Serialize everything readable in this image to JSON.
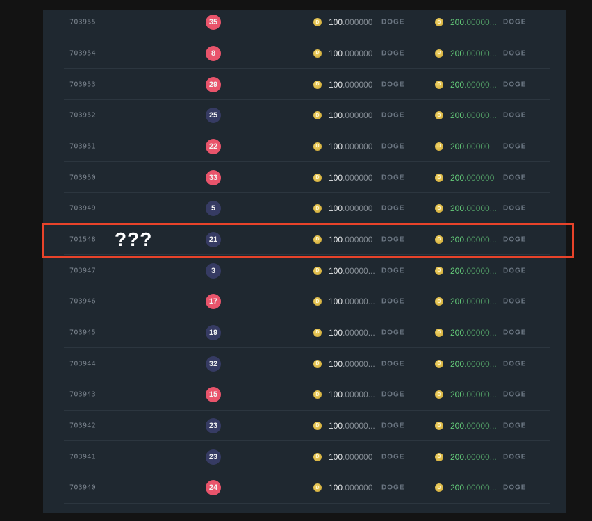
{
  "colors": {
    "badge_red": "#e9546b",
    "badge_navy": "#363b63",
    "highlight": "#e8432a",
    "coin": "#d9b33f"
  },
  "coin_icon": "doge-coin-icon",
  "coin_letter": "D",
  "annotation": "???",
  "rows": [
    {
      "id": "703955",
      "num": "35",
      "color": "red",
      "bet_int": "100",
      "bet_dec": ".000000",
      "bet_cur": "DOGE",
      "pay_int": "200",
      "pay_dec": ".00000...",
      "pay_cur": "DOGE"
    },
    {
      "id": "703954",
      "num": "8",
      "color": "red",
      "bet_int": "100",
      "bet_dec": ".000000",
      "bet_cur": "DOGE",
      "pay_int": "200",
      "pay_dec": ".00000...",
      "pay_cur": "DOGE"
    },
    {
      "id": "703953",
      "num": "29",
      "color": "red",
      "bet_int": "100",
      "bet_dec": ".000000",
      "bet_cur": "DOGE",
      "pay_int": "200",
      "pay_dec": ".00000...",
      "pay_cur": "DOGE"
    },
    {
      "id": "703952",
      "num": "25",
      "color": "navy",
      "bet_int": "100",
      "bet_dec": ".000000",
      "bet_cur": "DOGE",
      "pay_int": "200",
      "pay_dec": ".00000...",
      "pay_cur": "DOGE"
    },
    {
      "id": "703951",
      "num": "22",
      "color": "red",
      "bet_int": "100",
      "bet_dec": ".000000",
      "bet_cur": "DOGE",
      "pay_int": "200",
      "pay_dec": ".00000",
      "pay_cur": "DOGE"
    },
    {
      "id": "703950",
      "num": "33",
      "color": "red",
      "bet_int": "100",
      "bet_dec": ".000000",
      "bet_cur": "DOGE",
      "pay_int": "200",
      "pay_dec": ".000000",
      "pay_cur": "DOGE"
    },
    {
      "id": "703949",
      "num": "5",
      "color": "navy",
      "bet_int": "100",
      "bet_dec": ".000000",
      "bet_cur": "DOGE",
      "pay_int": "200",
      "pay_dec": ".00000...",
      "pay_cur": "DOGE"
    },
    {
      "id": "701548",
      "num": "21",
      "color": "navy",
      "bet_int": "100",
      "bet_dec": ".000000",
      "bet_cur": "DOGE",
      "pay_int": "200",
      "pay_dec": ".00000...",
      "pay_cur": "DOGE"
    },
    {
      "id": "703947",
      "num": "3",
      "color": "navy",
      "bet_int": "100",
      "bet_dec": ".00000...",
      "bet_cur": "DOGE",
      "pay_int": "200",
      "pay_dec": ".00000...",
      "pay_cur": "DOGE"
    },
    {
      "id": "703946",
      "num": "17",
      "color": "red",
      "bet_int": "100",
      "bet_dec": ".00000...",
      "bet_cur": "DOGE",
      "pay_int": "200",
      "pay_dec": ".00000...",
      "pay_cur": "DOGE"
    },
    {
      "id": "703945",
      "num": "19",
      "color": "navy",
      "bet_int": "100",
      "bet_dec": ".00000...",
      "bet_cur": "DOGE",
      "pay_int": "200",
      "pay_dec": ".00000...",
      "pay_cur": "DOGE"
    },
    {
      "id": "703944",
      "num": "32",
      "color": "navy",
      "bet_int": "100",
      "bet_dec": ".00000...",
      "bet_cur": "DOGE",
      "pay_int": "200",
      "pay_dec": ".00000...",
      "pay_cur": "DOGE"
    },
    {
      "id": "703943",
      "num": "15",
      "color": "red",
      "bet_int": "100",
      "bet_dec": ".00000...",
      "bet_cur": "DOGE",
      "pay_int": "200",
      "pay_dec": ".00000...",
      "pay_cur": "DOGE"
    },
    {
      "id": "703942",
      "num": "23",
      "color": "navy",
      "bet_int": "100",
      "bet_dec": ".00000...",
      "bet_cur": "DOGE",
      "pay_int": "200",
      "pay_dec": ".00000...",
      "pay_cur": "DOGE"
    },
    {
      "id": "703941",
      "num": "23",
      "color": "navy",
      "bet_int": "100",
      "bet_dec": ".000000",
      "bet_cur": "DOGE",
      "pay_int": "200",
      "pay_dec": ".00000...",
      "pay_cur": "DOGE"
    },
    {
      "id": "703940",
      "num": "24",
      "color": "red",
      "bet_int": "100",
      "bet_dec": ".000000",
      "bet_cur": "DOGE",
      "pay_int": "200",
      "pay_dec": ".00000...",
      "pay_cur": "DOGE"
    }
  ]
}
